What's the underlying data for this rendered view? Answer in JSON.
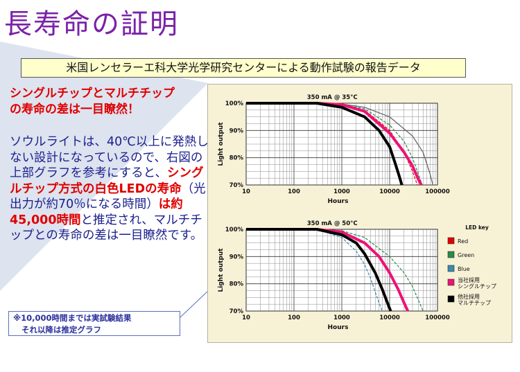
{
  "page": {
    "title": "長寿命の証明",
    "banner": "米国レンセラーエ科大学光学研究センターによる動作試験の報告データ",
    "headline_lines": [
      "シングルチップとマルチチップ",
      "の寿命の差は一目瞭然！"
    ],
    "body": {
      "p1": "ソウルライトは、40℃以上に発熱しない設計になっているので、右図の上部グラフを参考にすると、",
      "h1": "シングルチップ方式の白色LEDの寿命",
      "p2": "（光出力が約70％になる時間）",
      "h2": "は約45,000時間",
      "p3": "と推定され、マルチチップとの寿命の差は一目瞭然です。"
    },
    "note_lines": [
      "※10,000時間までは実試験結果",
      "それ以降は推定グラフ"
    ]
  },
  "colors": {
    "title": "#7a22a8",
    "red": "#e00000",
    "blue_text": "#1a1f8c",
    "banner_bg": "#ffffcc",
    "panel_bg": "#f7f1d6"
  },
  "chart_data": [
    {
      "type": "line",
      "title": "350 mA @ 35°C",
      "xlabel": "Hours",
      "ylabel": "Light output",
      "xscale": "log",
      "xlim": [
        10,
        100000
      ],
      "ylim": [
        70,
        100
      ],
      "xticks": [
        "10",
        "100",
        "1000",
        "10000",
        "100000"
      ],
      "yticks": [
        "70%",
        "80%",
        "90%",
        "100%"
      ],
      "series": [
        {
          "color": "#e00000",
          "dash": true,
          "width": 1.2,
          "x": [
            10,
            300,
            1000,
            3000,
            10000,
            20000,
            30000,
            38000
          ],
          "y": [
            100,
            100,
            99.5,
            97.5,
            90,
            82,
            75,
            70
          ]
        },
        {
          "color": "#2a8a4a",
          "dash": true,
          "width": 1.2,
          "x": [
            10,
            300,
            1000,
            3000,
            10000,
            20000,
            30000,
            40000,
            48000
          ],
          "y": [
            100,
            100,
            99.5,
            98,
            92,
            86,
            80,
            74,
            70
          ]
        },
        {
          "color": "#666666",
          "dash": false,
          "width": 1.3,
          "x": [
            10,
            300,
            1000,
            3000,
            10000,
            30000,
            50000,
            70000,
            80000
          ],
          "y": [
            100,
            100,
            99.7,
            98.5,
            95,
            88,
            82,
            74,
            70
          ]
        },
        {
          "color": "#ee1177",
          "dash": false,
          "width": 4,
          "x": [
            10,
            300,
            1000,
            3000,
            10000,
            20000,
            30000,
            40000,
            46000
          ],
          "y": [
            100,
            100,
            99.5,
            97,
            89,
            82,
            77,
            72,
            70
          ]
        },
        {
          "color": "#000000",
          "dash": false,
          "width": 4,
          "x": [
            10,
            300,
            1000,
            3000,
            6000,
            10000,
            13000,
            16000,
            18000
          ],
          "y": [
            100,
            100,
            98.5,
            95,
            90,
            84,
            78,
            73,
            70
          ]
        }
      ]
    },
    {
      "type": "line",
      "title": "350 mA @ 50°C",
      "xlabel": "Hours",
      "ylabel": "Light output",
      "xscale": "log",
      "xlim": [
        10,
        100000
      ],
      "ylim": [
        70,
        100
      ],
      "xticks": [
        "10",
        "100",
        "1000",
        "10000",
        "100000"
      ],
      "yticks": [
        "70%",
        "80%",
        "90%",
        "100%"
      ],
      "legend_title": "LED key",
      "legend": [
        {
          "label": "Red",
          "color": "#e00000"
        },
        {
          "label": "Green",
          "color": "#2a8a4a"
        },
        {
          "label": "Blue",
          "color": "#3a8ab0"
        },
        {
          "label": "当社採用\nシングルチップ",
          "color": "#ee1177"
        },
        {
          "label": "他社採用\nマルチチップ",
          "color": "#000000"
        }
      ],
      "series": [
        {
          "name": "Red",
          "color": "#e00000",
          "dash": true,
          "width": 1.2,
          "x": [
            10,
            300,
            1000,
            3000,
            6000,
            10000,
            15000,
            20000,
            23000
          ],
          "y": [
            100,
            100,
            99,
            95,
            90,
            84,
            78,
            73,
            70
          ]
        },
        {
          "name": "Green",
          "color": "#2a8a4a",
          "dash": true,
          "width": 1.2,
          "x": [
            10,
            300,
            1000,
            3000,
            10000,
            20000,
            30000,
            40000,
            50000
          ],
          "y": [
            100,
            100,
            99.5,
            97,
            90,
            84,
            79,
            74,
            70
          ]
        },
        {
          "name": "Blue",
          "color": "#3a8ab0",
          "dash": true,
          "width": 1.2,
          "x": [
            10,
            300,
            1000,
            2000,
            3000,
            4000,
            5000,
            6000,
            7000
          ],
          "y": [
            100,
            100,
            97,
            92,
            87,
            82,
            77,
            73,
            70
          ]
        },
        {
          "name": "当社採用シングルチップ",
          "color": "#ee1177",
          "dash": false,
          "width": 4,
          "x": [
            10,
            300,
            1000,
            3000,
            6000,
            10000,
            15000,
            20000,
            24000
          ],
          "y": [
            100,
            100,
            99,
            95,
            90,
            84,
            78,
            73,
            70
          ]
        },
        {
          "name": "他社採用マルチチップ",
          "color": "#000000",
          "dash": false,
          "width": 4,
          "x": [
            10,
            300,
            1000,
            2000,
            3000,
            5000,
            7000,
            9000,
            10500
          ],
          "y": [
            100,
            100,
            98,
            95,
            91,
            84,
            78,
            73,
            70
          ]
        }
      ]
    }
  ]
}
